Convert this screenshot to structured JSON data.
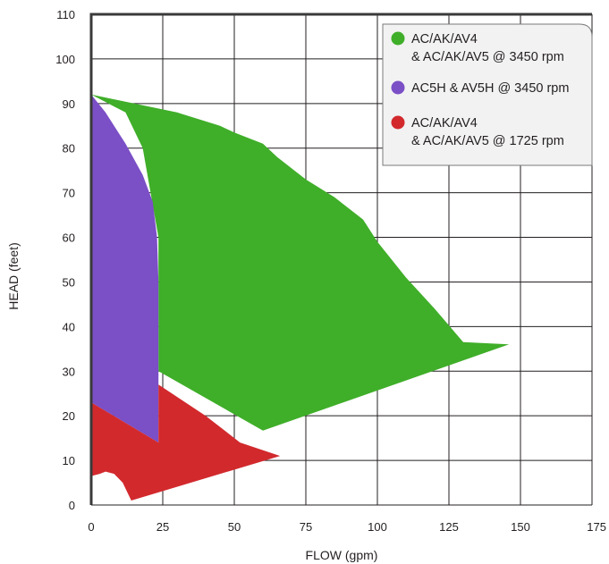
{
  "chart_data": {
    "type": "area",
    "xlabel": "FLOW (gpm)",
    "ylabel": "HEAD (feet)",
    "xlim": [
      0,
      175
    ],
    "ylim": [
      0,
      110
    ],
    "xticks": [
      "0",
      "25",
      "50",
      "75",
      "100",
      "125",
      "150",
      "175"
    ],
    "yticks": [
      "0",
      "10",
      "20",
      "30",
      "40",
      "50",
      "60",
      "70",
      "80",
      "90",
      "100",
      "110"
    ],
    "grid": true,
    "legend_position": "top-right",
    "series": [
      {
        "name_lines": [
          "AC/AK/AV4",
          "& AC/AK/AV5 @ 3450 rpm"
        ],
        "color": "#3fae29",
        "polygon": [
          [
            0,
            92
          ],
          [
            30,
            88
          ],
          [
            40,
            86
          ],
          [
            45,
            85
          ],
          [
            50,
            83.5
          ],
          [
            60,
            81
          ],
          [
            65,
            78
          ],
          [
            75,
            73
          ],
          [
            85,
            69
          ],
          [
            95,
            64
          ],
          [
            100,
            59
          ],
          [
            110,
            51
          ],
          [
            120,
            44
          ],
          [
            130,
            36.5
          ],
          [
            146,
            36
          ],
          [
            60,
            16.7
          ],
          [
            23.5,
            30
          ],
          [
            23.5,
            60
          ],
          [
            18,
            80
          ],
          [
            12,
            88
          ],
          [
            0,
            92
          ]
        ]
      },
      {
        "name_lines": [
          "AC5H & AV5H @ 3450 rpm"
        ],
        "color": "#7b4fc6",
        "polygon": [
          [
            0,
            92
          ],
          [
            5,
            88
          ],
          [
            12,
            81
          ],
          [
            18,
            74
          ],
          [
            21.5,
            68
          ],
          [
            23,
            60
          ],
          [
            23.5,
            50
          ],
          [
            23.5,
            14
          ],
          [
            0,
            23
          ]
        ]
      },
      {
        "name_lines": [
          "AC/AK/AV4",
          "& AC/AK/AV5 @ 1725 rpm"
        ],
        "color": "#d2292d",
        "polygon": [
          [
            0,
            23
          ],
          [
            23.5,
            14
          ],
          [
            23.5,
            27
          ],
          [
            40,
            20
          ],
          [
            52,
            14
          ],
          [
            66,
            11
          ],
          [
            14,
            1
          ],
          [
            11,
            5
          ],
          [
            8,
            7
          ],
          [
            5,
            7.5
          ],
          [
            3,
            7
          ],
          [
            0,
            6.5
          ]
        ]
      }
    ]
  }
}
